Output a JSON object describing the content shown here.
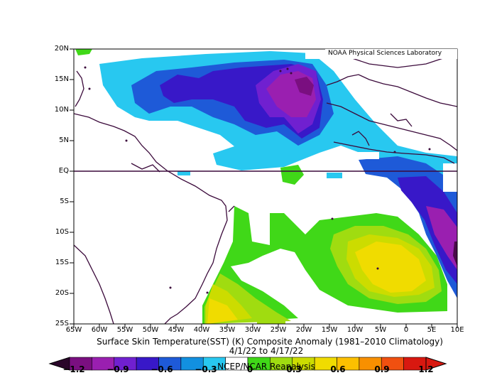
{
  "map": {
    "credit": "NOAA Physical Sciences Laboratory",
    "title": "Surface Skin Temperature(SST) (K) Composite Anomaly (1981–2010 Climatology)",
    "dates": "4/1/22  to 4/17/22",
    "source": "NCEP/NCAR Reanalysis",
    "lat_labels": [
      "20N",
      "15N",
      "10N",
      "5N",
      "EQ",
      "5S",
      "10S",
      "15S",
      "20S",
      "25S"
    ],
    "lon_labels": [
      "65W",
      "60W",
      "55W",
      "50W",
      "45W",
      "40W",
      "35W",
      "30W",
      "25W",
      "20W",
      "15W",
      "10W",
      "5W",
      "0",
      "5E",
      "10E"
    ],
    "colors": {
      "c_m12": "#4a0a4a",
      "c_m105": "#7a0f80",
      "c_m09": "#9a1fb0",
      "c_m075": "#7020d0",
      "c_m06": "#3818c8",
      "c_m045": "#1e5ad8",
      "c_m03": "#1290e0",
      "c_m015": "#28c8f0",
      "c_p015": "#40d818",
      "c_p03": "#a0dc10",
      "c_p045": "#ccdc00",
      "c_p06": "#f0dc00",
      "c_p075": "#fcc000",
      "c_p09": "#f89000",
      "c_p105": "#f05010",
      "c_p12": "#d81810"
    }
  },
  "colorbar": {
    "labels": [
      "−1.2",
      "−0.9",
      "−0.6",
      "−0.3",
      "0",
      "0.3",
      "0.6",
      "0.9",
      "1.2"
    ]
  }
}
